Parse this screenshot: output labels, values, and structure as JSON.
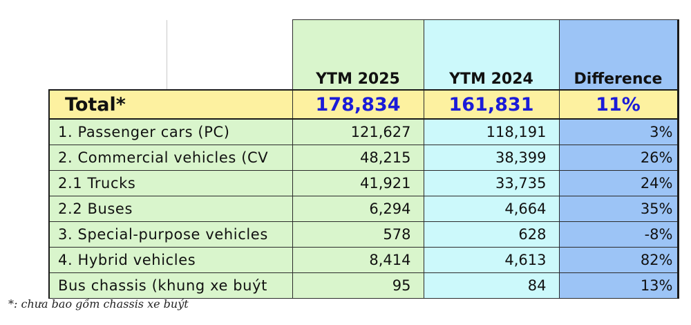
{
  "table": {
    "headers": {
      "ytm_2025": "YTM 2025",
      "ytm_2024": "YTM 2024",
      "difference": "Difference"
    },
    "total": {
      "label": "Total*",
      "ytm_2025": "178,834",
      "ytm_2024": "161,831",
      "difference": "11%"
    },
    "rows": [
      {
        "label": "1. Passenger cars (PC)",
        "ytm_2025": "121,627",
        "ytm_2024": "118,191",
        "difference": "3%"
      },
      {
        "label": "2. Commercial vehicles (CV",
        "ytm_2025": "48,215",
        "ytm_2024": "38,399",
        "difference": "26%"
      },
      {
        "label": "2.1 Trucks",
        "ytm_2025": "41,921",
        "ytm_2024": "33,735",
        "difference": "24%"
      },
      {
        "label": "2.2 Buses",
        "ytm_2025": "6,294",
        "ytm_2024": "4,664",
        "difference": "35%"
      },
      {
        "label": "3. Special-purpose vehicles",
        "ytm_2025": "578",
        "ytm_2024": "628",
        "difference": "-8%"
      },
      {
        "label": "4. Hybrid vehicles",
        "ytm_2025": "8,414",
        "ytm_2024": "4,613",
        "difference": "82%"
      },
      {
        "label": "Bus chassis (khung xe buýt",
        "ytm_2025": "95",
        "ytm_2024": "84",
        "difference": "13%"
      }
    ]
  },
  "footnote": "*: chưa bao gồm chassis xe buýt",
  "colors": {
    "ytm_2025_fill": "#d9f5cc",
    "ytm_2024_fill": "#ccf9fb",
    "difference_fill": "#9cc4f6",
    "total_fill": "#fdf1a0",
    "total_value_text": "#1b1bd8"
  }
}
